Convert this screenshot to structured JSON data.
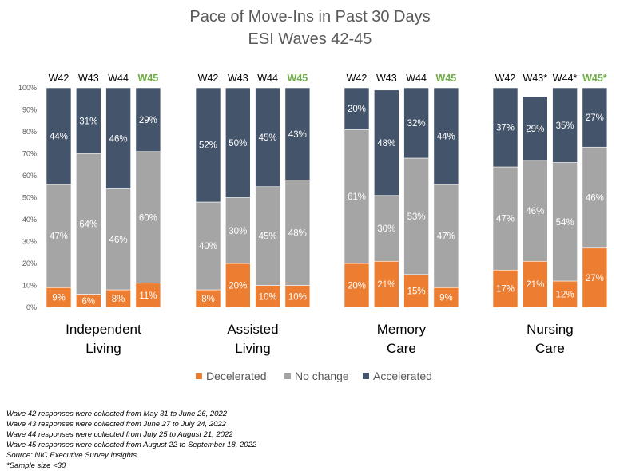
{
  "chart_data": {
    "type": "stacked-bar",
    "title": "Pace of Move-Ins in Past 30 Days",
    "subtitle": "ESI Waves 42-45",
    "ylim": [
      0,
      100
    ],
    "yticks": [
      "0%",
      "10%",
      "20%",
      "30%",
      "40%",
      "50%",
      "60%",
      "70%",
      "80%",
      "90%",
      "100%"
    ],
    "colors": {
      "decelerated": "#ed7d31",
      "no_change": "#a5a5a5",
      "accelerated": "#44546a",
      "highlight": "#70ad47"
    },
    "legend": [
      "Decelerated",
      "No change",
      "Accelerated"
    ],
    "groups": [
      {
        "name_lines": [
          "Independent",
          "Living"
        ],
        "bars": [
          {
            "wave": "W42",
            "highlight": false,
            "decelerated": 9,
            "no_change": 47,
            "accelerated": 44
          },
          {
            "wave": "W43",
            "highlight": false,
            "decelerated": 6,
            "no_change": 64,
            "accelerated": 31
          },
          {
            "wave": "W44",
            "highlight": false,
            "decelerated": 8,
            "no_change": 46,
            "accelerated": 46
          },
          {
            "wave": "W45",
            "highlight": true,
            "decelerated": 11,
            "no_change": 60,
            "accelerated": 29
          }
        ]
      },
      {
        "name_lines": [
          "Assisted",
          "Living"
        ],
        "bars": [
          {
            "wave": "W42",
            "highlight": false,
            "decelerated": 8,
            "no_change": 40,
            "accelerated": 52
          },
          {
            "wave": "W43",
            "highlight": false,
            "decelerated": 20,
            "no_change": 30,
            "accelerated": 50
          },
          {
            "wave": "W44",
            "highlight": false,
            "decelerated": 10,
            "no_change": 45,
            "accelerated": 45
          },
          {
            "wave": "W45",
            "highlight": true,
            "decelerated": 10,
            "no_change": 48,
            "accelerated": 43
          }
        ]
      },
      {
        "name_lines": [
          "Memory",
          "Care"
        ],
        "bars": [
          {
            "wave": "W42",
            "highlight": false,
            "decelerated": 20,
            "no_change": 61,
            "accelerated": 20
          },
          {
            "wave": "W43",
            "highlight": false,
            "decelerated": 21,
            "no_change": 30,
            "accelerated": 48
          },
          {
            "wave": "W44",
            "highlight": false,
            "decelerated": 15,
            "no_change": 53,
            "accelerated": 32
          },
          {
            "wave": "W45",
            "highlight": true,
            "decelerated": 9,
            "no_change": 47,
            "accelerated": 44
          }
        ]
      },
      {
        "name_lines": [
          "Nursing",
          "Care"
        ],
        "bars": [
          {
            "wave": "W42",
            "highlight": false,
            "decelerated": 17,
            "no_change": 47,
            "accelerated": 37
          },
          {
            "wave": "W43*",
            "highlight": false,
            "decelerated": 21,
            "no_change": 46,
            "accelerated": 29
          },
          {
            "wave": "W44*",
            "highlight": false,
            "decelerated": 12,
            "no_change": 54,
            "accelerated": 35
          },
          {
            "wave": "W45*",
            "highlight": true,
            "decelerated": 27,
            "no_change": 46,
            "accelerated": 27
          }
        ]
      }
    ]
  },
  "footnotes": [
    "Wave 42 responses were collected from May 31 to June 26, 2022",
    "Wave 43 responses were collected from June 27 to July 24, 2022",
    "Wave 44 responses were collected from July 25 to August 21, 2022",
    "Wave 45 responses were collected from August 22 to September 18, 2022",
    "Source: NIC Executive Survey Insights",
    "*Sample size <30"
  ]
}
